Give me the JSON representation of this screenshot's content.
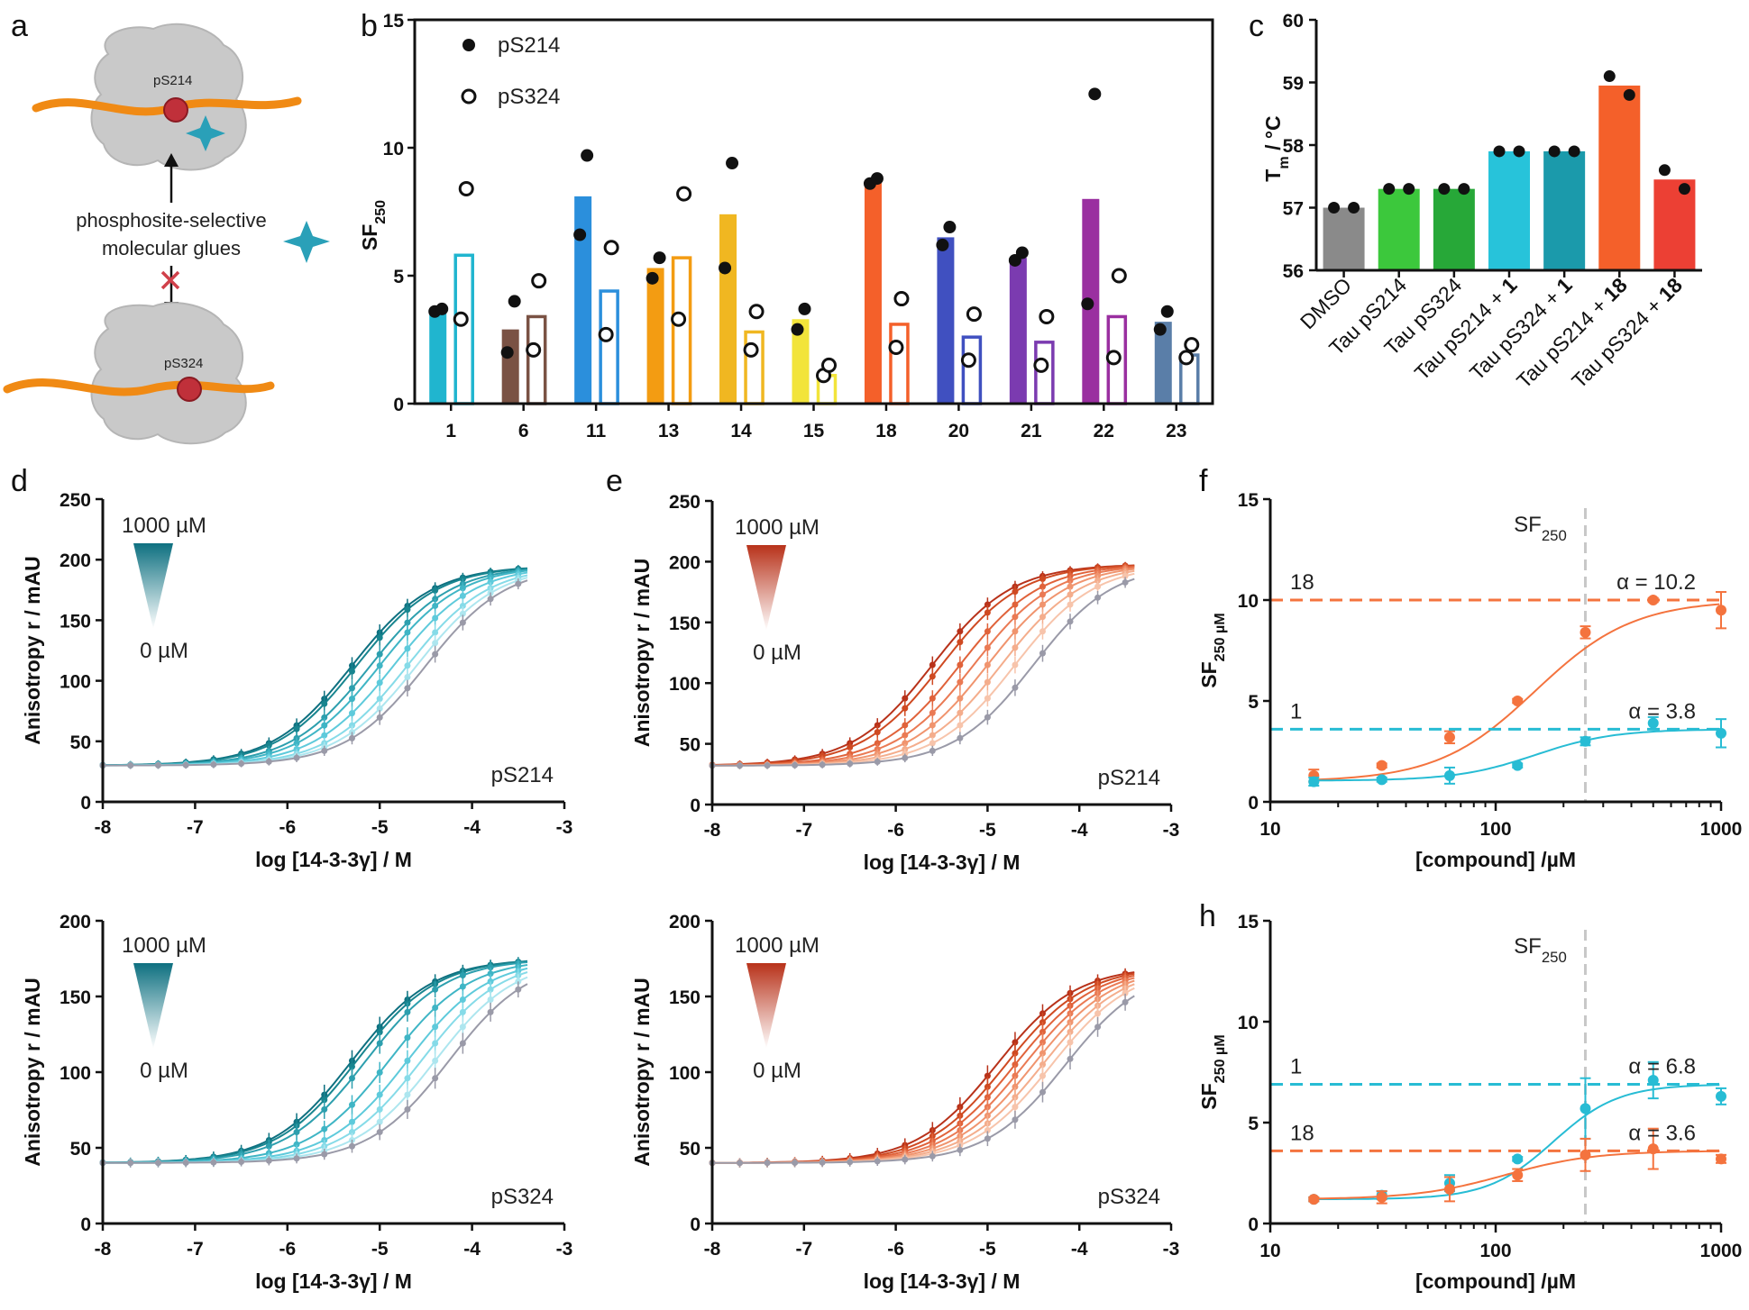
{
  "panel_letters": {
    "a": "a",
    "b": "b",
    "c": "c",
    "d": "d",
    "e": "e",
    "f": "f",
    "h": "h"
  },
  "panel_a": {
    "site_top": "pS214",
    "site_bottom": "pS324",
    "glue_label_1": "phosphosite-selective",
    "glue_label_2": "molecular glues",
    "colors": {
      "peptide": "#f08a14",
      "protein": "#c8c8c8",
      "phospho": "#c0303a",
      "glue": "#2aa0b8",
      "cross": "#d0404a"
    }
  },
  "chart_data": [
    {
      "panel": "b",
      "type": "bar",
      "ylabel": "SF",
      "ylabel_sub": "250",
      "ylim": [
        0,
        15
      ],
      "yticks": [
        "0",
        "5",
        "10",
        "15"
      ],
      "categories": [
        "1",
        "6",
        "11",
        "13",
        "14",
        "15",
        "18",
        "20",
        "21",
        "22",
        "23"
      ],
      "colors": [
        "#20b5cf",
        "#7a5244",
        "#2b8fdc",
        "#f39c12",
        "#f0b721",
        "#f2e43a",
        "#f4602a",
        "#4050c0",
        "#7b3bb0",
        "#9a2fa0",
        "#5a7ea8"
      ],
      "legend": [
        {
          "name": "pS214",
          "marker": "filled"
        },
        {
          "name": "pS324",
          "marker": "open"
        }
      ],
      "series": [
        {
          "name": "pS214",
          "values": [
            3.6,
            2.9,
            8.1,
            5.3,
            7.4,
            3.3,
            8.7,
            6.5,
            5.7,
            8.0,
            3.2
          ],
          "points": [
            [
              3.6,
              3.7
            ],
            [
              2.0,
              4.0
            ],
            [
              6.6,
              9.7
            ],
            [
              4.9,
              5.7
            ],
            [
              5.3,
              9.4
            ],
            [
              2.9,
              3.7
            ],
            [
              8.6,
              8.8
            ],
            [
              6.2,
              6.9
            ],
            [
              5.6,
              5.9
            ],
            [
              3.9,
              12.1
            ],
            [
              2.9,
              3.6
            ]
          ]
        },
        {
          "name": "pS324",
          "values": [
            5.8,
            3.4,
            4.4,
            5.7,
            2.8,
            1.1,
            3.1,
            2.6,
            2.4,
            3.4,
            1.9
          ],
          "points": [
            [
              3.3,
              8.4
            ],
            [
              2.1,
              4.8
            ],
            [
              2.7,
              6.1
            ],
            [
              3.3,
              8.2
            ],
            [
              2.1,
              3.6
            ],
            [
              1.1,
              1.5
            ],
            [
              2.2,
              4.1
            ],
            [
              1.7,
              3.5
            ],
            [
              1.5,
              3.4
            ],
            [
              1.8,
              5.0
            ],
            [
              1.8,
              2.3
            ]
          ]
        }
      ]
    },
    {
      "panel": "c",
      "type": "bar",
      "ylabel": "T",
      "ylabel_sub": "m",
      "ylabel_tail": " / °C",
      "ylim": [
        56,
        60
      ],
      "yticks": [
        "56",
        "57",
        "58",
        "59",
        "60"
      ],
      "categories": [
        "DMSO",
        "Tau pS214",
        "Tau pS324",
        "Tau pS214 + 1",
        "Tau pS324 + 1",
        "Tau pS214 + 18",
        "Tau pS324 + 18"
      ],
      "label_parts": [
        [
          "DMSO",
          ""
        ],
        [
          "Tau pS214",
          ""
        ],
        [
          "Tau pS324",
          ""
        ],
        [
          "Tau pS214 + ",
          "1"
        ],
        [
          "Tau pS324 + ",
          "1"
        ],
        [
          "Tau pS214 + ",
          "18"
        ],
        [
          "Tau pS324 + ",
          "18"
        ]
      ],
      "colors": [
        "#8a8a8a",
        "#3cc83c",
        "#27a838",
        "#27c3da",
        "#1b9aab",
        "#f4602a",
        "#ec4034"
      ],
      "values": [
        57.0,
        57.3,
        57.3,
        57.9,
        57.9,
        58.95,
        57.45
      ],
      "points": [
        [
          57.0,
          57.0
        ],
        [
          57.3,
          57.3
        ],
        [
          57.3,
          57.3
        ],
        [
          57.9,
          57.9
        ],
        [
          57.9,
          57.9
        ],
        [
          59.1,
          58.8
        ],
        [
          57.6,
          57.3
        ]
      ]
    },
    {
      "panel": "d",
      "type": "line",
      "xlabel": "log [14-3-3γ] / M",
      "ylabel": "Anisotropy r / mAU",
      "xlim": [
        -8,
        -3
      ],
      "ylim": [
        0,
        250
      ],
      "xticks": [
        "-8",
        "-7",
        "-6",
        "-5",
        "-4",
        "-3"
      ],
      "yticks": [
        "0",
        "50",
        "100",
        "150",
        "200",
        "250"
      ],
      "annotation": "pS214",
      "gradient_top": "1000 µM",
      "gradient_bottom": "0 µM",
      "bottom": 30,
      "top": 195,
      "ec50_log": [
        -5.3,
        -5.25,
        -5.1,
        -5.0,
        -4.85,
        -4.7,
        -4.6,
        -4.5
      ],
      "colors": [
        "#0e7080",
        "#18858f",
        "#2d9fae",
        "#3fb5c5",
        "#5ecadb",
        "#86dbe8",
        "#ade6ef",
        "#9a9aa8"
      ]
    },
    {
      "panel": "d2",
      "type": "line",
      "xlabel": "log [14-3-3γ] / M",
      "ylabel": "Anisotropy r / mAU",
      "xlim": [
        -8,
        -3
      ],
      "ylim": [
        0,
        200
      ],
      "xticks": [
        "-8",
        "-7",
        "-6",
        "-5",
        "-4",
        "-3"
      ],
      "yticks": [
        "0",
        "50",
        "100",
        "150",
        "200"
      ],
      "annotation": "pS324",
      "gradient_top": "1000 µM",
      "gradient_bottom": "0 µM",
      "bottom": 40,
      "top": 175,
      "ec50_log": [
        -5.3,
        -5.25,
        -5.15,
        -4.9,
        -4.7,
        -4.55,
        -4.4,
        -4.25
      ],
      "colors": [
        "#0e7080",
        "#18858f",
        "#2d9fae",
        "#3fb5c5",
        "#5ecadb",
        "#86dbe8",
        "#ade6ef",
        "#9a9aa8"
      ]
    },
    {
      "panel": "e",
      "type": "line",
      "xlabel": "log [14-3-3γ] / M",
      "ylabel": "Anisotropy r / mAU",
      "xlim": [
        -8,
        -3
      ],
      "ylim": [
        0,
        250
      ],
      "xticks": [
        "-8",
        "-7",
        "-6",
        "-5",
        "-4",
        "-3"
      ],
      "yticks": [
        "0",
        "50",
        "100",
        "150",
        "200",
        "250"
      ],
      "annotation": "pS214",
      "gradient_top": "1000 µM",
      "gradient_bottom": "0 µM",
      "bottom": 32,
      "top": 198,
      "ec50_log": [
        -5.6,
        -5.5,
        -5.3,
        -5.15,
        -5.0,
        -4.85,
        -4.7,
        -4.5
      ],
      "colors": [
        "#b8321a",
        "#cf4a22",
        "#e0623a",
        "#ea7a54",
        "#f0946e",
        "#f4ad8c",
        "#f7c4ab",
        "#9a9aa8"
      ]
    },
    {
      "panel": "e2",
      "type": "line",
      "xlabel": "log [14-3-3γ] / M",
      "ylabel": "Anisotropy r / mAU",
      "xlim": [
        -8,
        -3
      ],
      "ylim": [
        0,
        200
      ],
      "xticks": [
        "-8",
        "-7",
        "-6",
        "-5",
        "-4",
        "-3"
      ],
      "yticks": [
        "0",
        "50",
        "100",
        "150",
        "200"
      ],
      "annotation": "pS324",
      "gradient_top": "1000 µM",
      "gradient_bottom": "0 µM",
      "bottom": 40,
      "top": 170,
      "ec50_log": [
        -4.9,
        -4.8,
        -4.7,
        -4.6,
        -4.5,
        -4.4,
        -4.3,
        -4.15
      ],
      "colors": [
        "#b8321a",
        "#cf4a22",
        "#e0623a",
        "#ea7a54",
        "#f0946e",
        "#f4ad8c",
        "#f7c4ab",
        "#9a9aa8"
      ]
    },
    {
      "panel": "f",
      "type": "scatter",
      "xlabel": "[compound] /µM",
      "ylabel": "SF",
      "ylabel_sub": "250 µM",
      "xscale": "log",
      "xlim": [
        10,
        1000
      ],
      "ylim": [
        0,
        15
      ],
      "xticks": [
        "10",
        "100",
        "1000"
      ],
      "yticks": [
        "0",
        "5",
        "10",
        "15"
      ],
      "vline_label": "SF",
      "vline_label_sub": "250",
      "vline_x": 250,
      "series": [
        {
          "name": "18",
          "color": "#f4733e",
          "alpha": "α = 10.2",
          "plateau": 10.0,
          "bottom": 1.0,
          "ec50": 150,
          "hill": 2.0,
          "x": [
            15.6,
            31.25,
            62.5,
            125,
            250,
            500,
            1000
          ],
          "y": [
            1.3,
            1.8,
            3.2,
            5.0,
            8.4,
            10.0,
            9.5
          ],
          "err": [
            0.3,
            0.1,
            0.3,
            0.1,
            0.3,
            0.1,
            0.9
          ]
        },
        {
          "name": "1",
          "color": "#27bcd4",
          "alpha": "α = 3.8",
          "plateau": 3.6,
          "bottom": 1.05,
          "ec50": 150,
          "hill": 2.5,
          "x": [
            15.6,
            31.25,
            62.5,
            125,
            250,
            500,
            1000
          ],
          "y": [
            1.0,
            1.1,
            1.3,
            1.8,
            3.0,
            3.9,
            3.4
          ],
          "err": [
            0.2,
            0.1,
            0.4,
            0.1,
            0.2,
            0.3,
            0.7
          ]
        }
      ]
    },
    {
      "panel": "h",
      "type": "scatter",
      "xlabel": "[compound] /µM",
      "ylabel": "SF",
      "ylabel_sub": "250 µM",
      "xscale": "log",
      "xlim": [
        10,
        1000
      ],
      "ylim": [
        0,
        15
      ],
      "xticks": [
        "10",
        "100",
        "1000"
      ],
      "yticks": [
        "0",
        "5",
        "10",
        "15"
      ],
      "vline_label": "SF",
      "vline_label_sub": "250",
      "vline_x": 250,
      "series": [
        {
          "name": "1",
          "color": "#27bcd4",
          "alpha": "α = 6.8",
          "plateau": 6.9,
          "bottom": 1.2,
          "ec50": 180,
          "hill": 3.0,
          "x": [
            15.6,
            31.25,
            62.5,
            125,
            250,
            500,
            1000
          ],
          "y": [
            1.2,
            1.4,
            2.0,
            3.2,
            5.7,
            7.1,
            6.3
          ],
          "err": [
            0.1,
            0.2,
            0.4,
            0.1,
            1.5,
            0.9,
            0.4
          ]
        },
        {
          "name": "18",
          "color": "#f4733e",
          "alpha": "α = 3.6",
          "plateau": 3.6,
          "bottom": 1.2,
          "ec50": 110,
          "hill": 2.2,
          "x": [
            15.6,
            31.25,
            62.5,
            125,
            250,
            500,
            1000
          ],
          "y": [
            1.2,
            1.3,
            1.7,
            2.4,
            3.4,
            3.7,
            3.2
          ],
          "err": [
            0.1,
            0.3,
            0.6,
            0.3,
            0.8,
            1.0,
            0.2
          ]
        }
      ]
    }
  ]
}
